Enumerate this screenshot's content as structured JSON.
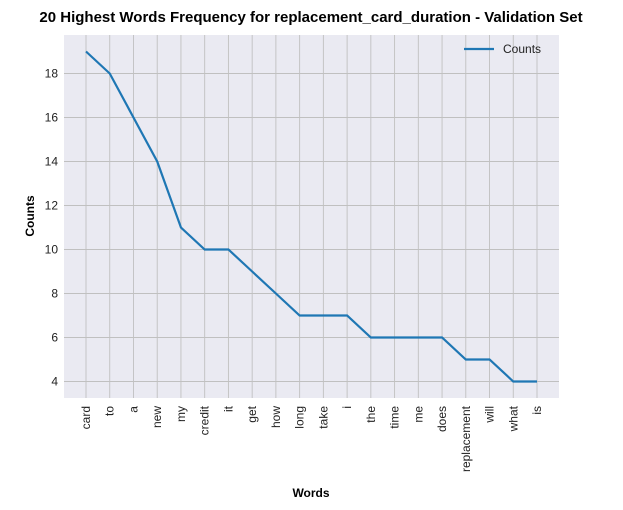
{
  "chart_data": {
    "type": "line",
    "title": "20 Highest Words Frequency for replacement_card_duration - Validation Set",
    "xlabel": "Words",
    "ylabel": "Counts",
    "categories": [
      "card",
      "to",
      "a",
      "new",
      "my",
      "credit",
      "it",
      "get",
      "how",
      "long",
      "take",
      "i",
      "the",
      "time",
      "me",
      "does",
      "replacement",
      "will",
      "what",
      "is"
    ],
    "series": [
      {
        "name": "Counts",
        "values": [
          19,
          18,
          16,
          14,
          11,
          10,
          10,
          9,
          8,
          7,
          7,
          7,
          6,
          6,
          6,
          6,
          5,
          5,
          4,
          4
        ]
      }
    ],
    "yticks": [
      4,
      6,
      8,
      10,
      12,
      14,
      16,
      18
    ],
    "ylim": [
      3.25,
      19.75
    ],
    "grid": true,
    "legend": "top-right",
    "colors": {
      "line": "#1f77b4",
      "plot_bg": "#eaeaf2",
      "grid": "#c0c0c0"
    }
  }
}
